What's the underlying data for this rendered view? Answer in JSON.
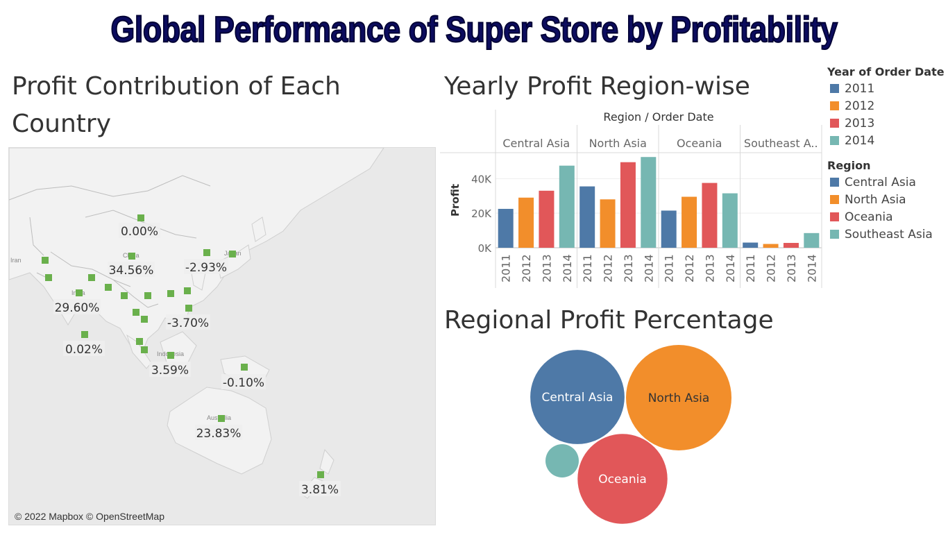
{
  "page_title": "Global Performance of Super Store by Profitability",
  "colors": {
    "title": "#0c0c5e",
    "central_asia": "#4e79a7",
    "north_asia": "#f28e2b",
    "oceania": "#e15759",
    "southeast_asia": "#76b7b2",
    "map_marker": "#6ab04c"
  },
  "map": {
    "title": "Profit Contribution of Each Country",
    "copyright": "© 2022 Mapbox © OpenStreetMap",
    "place_labels": [
      "Iran",
      "India",
      "China",
      "Japan",
      "Indonesia",
      "Australia"
    ],
    "percent_labels": [
      "0.00%",
      "34.56%",
      "-2.93%",
      "29.60%",
      "-3.70%",
      "0.02%",
      "3.59%",
      "-0.10%",
      "23.83%",
      "3.81%"
    ]
  },
  "legend_year": {
    "title": "Year of Order Date",
    "items": [
      {
        "label": "2011",
        "color": "#4e79a7"
      },
      {
        "label": "2012",
        "color": "#f28e2b"
      },
      {
        "label": "2013",
        "color": "#e15759"
      },
      {
        "label": "2014",
        "color": "#76b7b2"
      }
    ]
  },
  "legend_region": {
    "title": "Region",
    "items": [
      {
        "label": "Central Asia",
        "color": "#4e79a7"
      },
      {
        "label": "North Asia",
        "color": "#f28e2b"
      },
      {
        "label": "Oceania",
        "color": "#e15759"
      },
      {
        "label": "Southeast Asia",
        "color": "#76b7b2"
      }
    ]
  },
  "chart_data": [
    {
      "type": "bar",
      "title": "Yearly Profit Region-wise",
      "header": "Region  /  Order Date",
      "ylabel": "Profit",
      "yticks": [
        "0K",
        "20K",
        "40K"
      ],
      "ylim": [
        0,
        55000
      ],
      "groups": [
        {
          "name": "Central Asia",
          "display": "Central Asia",
          "categories": [
            "2011",
            "2012",
            "2013",
            "2014"
          ],
          "values": [
            22500,
            29000,
            33000,
            47500
          ]
        },
        {
          "name": "North Asia",
          "display": "North Asia",
          "categories": [
            "2011",
            "2012",
            "2013",
            "2014"
          ],
          "values": [
            35500,
            28000,
            49500,
            52500
          ]
        },
        {
          "name": "Oceania",
          "display": "Oceania",
          "categories": [
            "2011",
            "2012",
            "2013",
            "2014"
          ],
          "values": [
            21500,
            29500,
            37500,
            31500
          ]
        },
        {
          "name": "Southeast Asia",
          "display": "Southeast A..",
          "categories": [
            "2011",
            "2012",
            "2013",
            "2014"
          ],
          "values": [
            3000,
            2200,
            2800,
            8500
          ]
        }
      ],
      "year_colors": [
        "#4e79a7",
        "#f28e2b",
        "#e15759",
        "#76b7b2"
      ]
    },
    {
      "type": "bubble",
      "title": "Regional Profit Percentage",
      "bubbles": [
        {
          "label": "Central Asia",
          "value": 132000,
          "color": "#4e79a7",
          "text_color": "#ffffff"
        },
        {
          "label": "North Asia",
          "value": 165500,
          "color": "#f28e2b",
          "text_color": "#333333"
        },
        {
          "label": "Oceania",
          "value": 120000,
          "color": "#e15759",
          "text_color": "#ffffff"
        },
        {
          "label": "",
          "value": 16500,
          "color": "#76b7b2",
          "text_color": "#ffffff"
        }
      ]
    }
  ]
}
